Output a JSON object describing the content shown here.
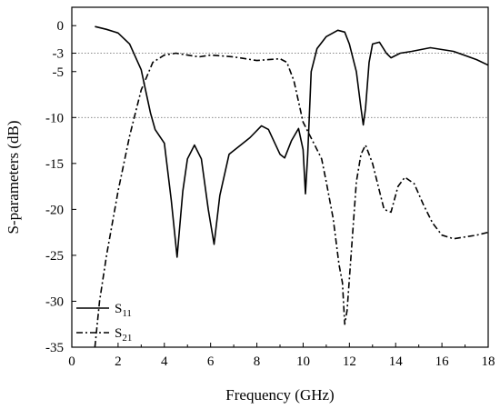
{
  "chart_data": {
    "type": "line",
    "title": "",
    "xlabel": "Frequency (GHz)",
    "ylabel": "S-parameters (dB)",
    "xlim": [
      0,
      18
    ],
    "ylim": [
      -35,
      2
    ],
    "x_ticks": [
      0,
      2,
      4,
      6,
      8,
      10,
      12,
      14,
      16,
      18
    ],
    "y_ticks": [
      0,
      -3,
      -5,
      -10,
      -15,
      -20,
      -25,
      -30,
      -35
    ],
    "grid": false,
    "reference_lines": [
      {
        "y": -3,
        "style": "dotted",
        "color": "#7a7a7a"
      },
      {
        "y": -10,
        "style": "dotted",
        "color": "#7a7a7a"
      }
    ],
    "legend": {
      "position": "bottom-left"
    },
    "series": [
      {
        "name_main": "S",
        "name_sub": "11",
        "style": "solid",
        "color": "#000000",
        "points": [
          [
            1.0,
            -0.1
          ],
          [
            1.5,
            -0.4
          ],
          [
            2.0,
            -0.8
          ],
          [
            2.5,
            -2.0
          ],
          [
            3.0,
            -4.8
          ],
          [
            3.4,
            -9.5
          ],
          [
            3.6,
            -11.3
          ],
          [
            4.0,
            -12.8
          ],
          [
            4.3,
            -19.0
          ],
          [
            4.55,
            -25.2
          ],
          [
            4.8,
            -18.0
          ],
          [
            5.0,
            -14.5
          ],
          [
            5.3,
            -13.0
          ],
          [
            5.6,
            -14.5
          ],
          [
            5.9,
            -20.0
          ],
          [
            6.15,
            -23.8
          ],
          [
            6.4,
            -18.5
          ],
          [
            6.8,
            -14.0
          ],
          [
            7.2,
            -13.2
          ],
          [
            7.7,
            -12.2
          ],
          [
            8.2,
            -10.9
          ],
          [
            8.5,
            -11.3
          ],
          [
            9.0,
            -14.0
          ],
          [
            9.2,
            -14.4
          ],
          [
            9.5,
            -12.5
          ],
          [
            9.8,
            -11.2
          ],
          [
            10.0,
            -13.5
          ],
          [
            10.1,
            -18.3
          ],
          [
            10.2,
            -14.0
          ],
          [
            10.35,
            -5.0
          ],
          [
            10.6,
            -2.5
          ],
          [
            11.0,
            -1.2
          ],
          [
            11.5,
            -0.5
          ],
          [
            11.8,
            -0.7
          ],
          [
            12.0,
            -2.0
          ],
          [
            12.3,
            -5.0
          ],
          [
            12.5,
            -9.0
          ],
          [
            12.6,
            -10.8
          ],
          [
            12.7,
            -9.0
          ],
          [
            12.85,
            -4.0
          ],
          [
            13.0,
            -2.0
          ],
          [
            13.3,
            -1.8
          ],
          [
            13.6,
            -3.0
          ],
          [
            13.8,
            -3.5
          ],
          [
            14.2,
            -3.0
          ],
          [
            14.7,
            -2.8
          ],
          [
            15.5,
            -2.4
          ],
          [
            16.5,
            -2.8
          ],
          [
            17.5,
            -3.7
          ],
          [
            18.0,
            -4.3
          ]
        ]
      },
      {
        "name_main": "S",
        "name_sub": "21",
        "style": "dashdot",
        "color": "#000000",
        "points": [
          [
            1.0,
            -35
          ],
          [
            1.2,
            -30
          ],
          [
            1.5,
            -25
          ],
          [
            2.0,
            -18
          ],
          [
            2.5,
            -12
          ],
          [
            3.0,
            -7.0
          ],
          [
            3.5,
            -4.0
          ],
          [
            4.0,
            -3.2
          ],
          [
            4.5,
            -3.0
          ],
          [
            5.0,
            -3.2
          ],
          [
            5.5,
            -3.4
          ],
          [
            6.0,
            -3.2
          ],
          [
            6.5,
            -3.3
          ],
          [
            7.0,
            -3.4
          ],
          [
            7.5,
            -3.6
          ],
          [
            8.0,
            -3.8
          ],
          [
            8.5,
            -3.7
          ],
          [
            9.0,
            -3.6
          ],
          [
            9.3,
            -4.0
          ],
          [
            9.6,
            -6.0
          ],
          [
            10.0,
            -10.5
          ],
          [
            10.5,
            -13.0
          ],
          [
            10.8,
            -14.5
          ],
          [
            11.0,
            -17.0
          ],
          [
            11.3,
            -21.0
          ],
          [
            11.55,
            -26.0
          ],
          [
            11.7,
            -28.0
          ],
          [
            11.8,
            -32.5
          ],
          [
            11.9,
            -31.0
          ],
          [
            12.1,
            -24.0
          ],
          [
            12.3,
            -17.0
          ],
          [
            12.5,
            -14.0
          ],
          [
            12.7,
            -13.0
          ],
          [
            13.0,
            -15.0
          ],
          [
            13.3,
            -18.0
          ],
          [
            13.5,
            -20.0
          ],
          [
            13.8,
            -20.3
          ],
          [
            14.1,
            -17.5
          ],
          [
            14.4,
            -16.5
          ],
          [
            14.8,
            -17.2
          ],
          [
            15.2,
            -19.5
          ],
          [
            15.6,
            -21.5
          ],
          [
            16.0,
            -22.8
          ],
          [
            16.5,
            -23.2
          ],
          [
            17.0,
            -23.0
          ],
          [
            17.5,
            -22.8
          ],
          [
            18.0,
            -22.5
          ]
        ]
      }
    ]
  }
}
